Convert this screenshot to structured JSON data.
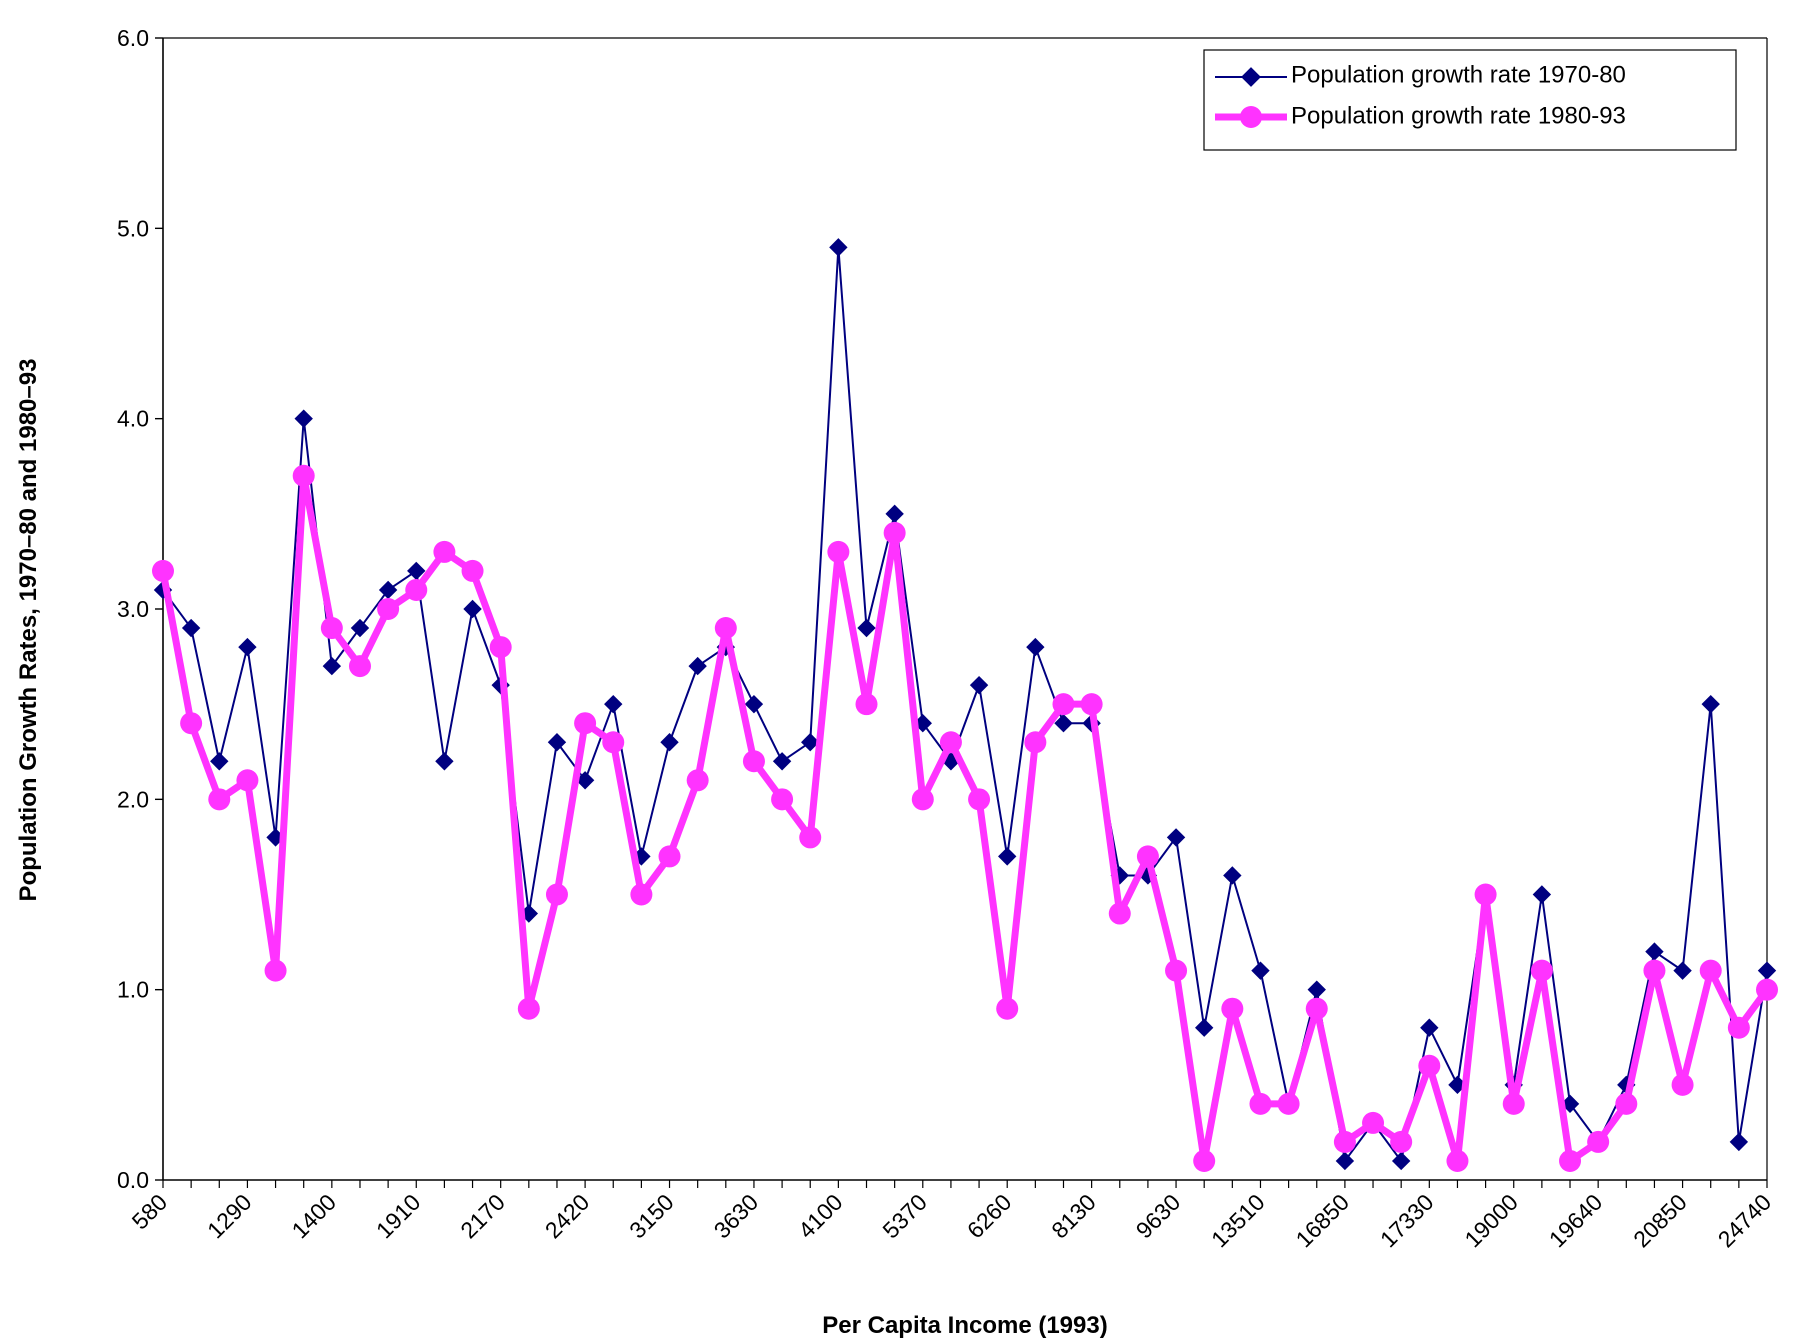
{
  "chart_data": {
    "type": "line",
    "title": "",
    "xlabel": "Per Capita Income (1993)",
    "ylabel": "Population Growth Rates, 1970–80 and 1980–93",
    "ylim": [
      0,
      6
    ],
    "yticks": [
      "0.0",
      "1.0",
      "2.0",
      "3.0",
      "4.0",
      "5.0",
      "6.0"
    ],
    "xtick_labels": [
      "580",
      "1290",
      "1400",
      "1910",
      "2170",
      "2420",
      "3150",
      "3630",
      "4100",
      "5370",
      "6260",
      "8130",
      "9630",
      "13510",
      "16850",
      "17330",
      "19000",
      "19640",
      "20850",
      "24740"
    ],
    "grid": false,
    "legend_position": "top-right",
    "series": [
      {
        "name": "Population growth  rate 1970-80",
        "color": "#000080",
        "marker": "diamond",
        "values": [
          3.1,
          2.9,
          2.2,
          2.8,
          1.8,
          4.0,
          2.7,
          2.9,
          3.1,
          3.2,
          2.2,
          3.0,
          2.6,
          1.4,
          2.3,
          2.1,
          2.5,
          1.7,
          2.3,
          2.7,
          2.8,
          2.5,
          2.2,
          2.3,
          4.9,
          2.9,
          3.5,
          2.4,
          2.2,
          2.6,
          1.7,
          2.8,
          2.4,
          2.4,
          1.6,
          1.6,
          1.8,
          0.8,
          1.6,
          1.1,
          0.4,
          1.0,
          0.1,
          0.3,
          0.1,
          0.8,
          0.5,
          1.5,
          0.5,
          1.5,
          0.4,
          0.2,
          0.5,
          1.2,
          1.1,
          2.5,
          0.2,
          1.1
        ]
      },
      {
        "name": "Population growth  rate 1980-93",
        "color": "#ff33ff",
        "marker": "circle",
        "values": [
          3.2,
          2.4,
          2.0,
          2.1,
          1.1,
          3.7,
          2.9,
          2.7,
          3.0,
          3.1,
          3.3,
          3.2,
          2.8,
          0.9,
          1.5,
          2.4,
          2.3,
          1.5,
          1.7,
          2.1,
          2.9,
          2.2,
          2.0,
          1.8,
          3.3,
          2.5,
          3.4,
          2.0,
          2.3,
          2.0,
          0.9,
          2.3,
          2.5,
          2.5,
          1.4,
          1.7,
          1.1,
          0.1,
          0.9,
          0.4,
          0.4,
          0.9,
          0.2,
          0.3,
          0.2,
          0.6,
          0.1,
          1.5,
          0.4,
          1.1,
          0.1,
          0.2,
          0.4,
          1.1,
          0.5,
          1.1,
          0.8,
          1.0
        ]
      }
    ]
  }
}
